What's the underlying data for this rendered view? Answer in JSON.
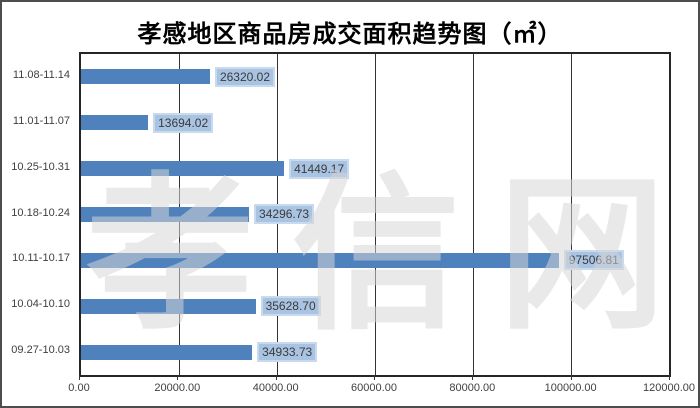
{
  "title": "孝感地区商品房成交面积趋势图（㎡）",
  "watermark": "孝信网",
  "colors": {
    "bar": "#4F81BD",
    "value_label_fill": "#A9C3E2",
    "value_label_border": "#C9D9EE",
    "axis_text": "#404040",
    "gridline": "#333333",
    "watermark": "#D6D6D6"
  },
  "chart_data": {
    "type": "bar",
    "orientation": "horizontal",
    "title": "孝感地区商品房成交面积趋势图（㎡）",
    "categories": [
      "11.08-11.14",
      "11.01-11.07",
      "10.25-10.31",
      "10.18-10.24",
      "10.11-10.17",
      "10.04-10.10",
      "09.27-10.03"
    ],
    "values": [
      26320.02,
      13694.02,
      41449.17,
      34296.73,
      97506.81,
      35628.7,
      34933.73
    ],
    "value_labels": [
      "26320.02",
      "13694.02",
      "41449.17",
      "34296.73",
      "97506.81",
      "35628.70",
      "34933.73"
    ],
    "x_ticks": [
      "0.00",
      "20000.00",
      "40000.00",
      "60000.00",
      "80000.00",
      "100000.00",
      "120000.00"
    ],
    "xlim": [
      0,
      120000
    ],
    "xlabel": "",
    "ylabel": "",
    "grid": "vertical",
    "legend": "none"
  }
}
